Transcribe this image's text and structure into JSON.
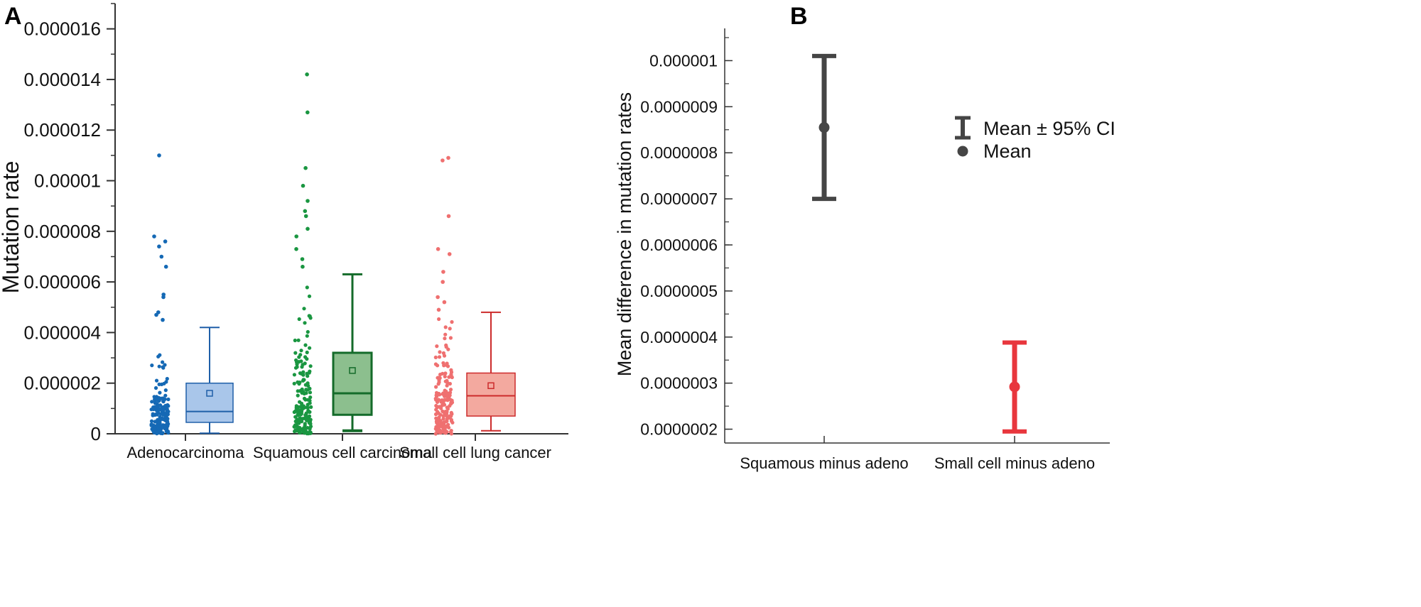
{
  "panels": {
    "a": {
      "letter": "A"
    },
    "b": {
      "letter": "B"
    }
  },
  "chart_data": [
    {
      "type": "box",
      "panel": "A",
      "title": "",
      "xlabel": "",
      "ylabel": "Mutation rate",
      "ylim": [
        0,
        1.7e-05
      ],
      "yticks": [
        0,
        2e-06,
        4e-06,
        6e-06,
        8e-06,
        1e-05,
        1.2e-05,
        1.4e-05,
        1.6e-05
      ],
      "ytick_labels": [
        "0",
        "0.000002",
        "0.000004",
        "0.000006",
        "0.000008",
        "0.00001",
        "0.000012",
        "0.000014",
        "0.000016"
      ],
      "grid": false,
      "categories": [
        "Adenocarcinoma",
        "Squamous cell carcinoma",
        "Small cell lung cancer"
      ],
      "series": [
        {
          "category": "Adenocarcinoma",
          "color": "#1f5fa8",
          "fill": "#a9c6ea",
          "whisker_low": 2e-08,
          "q1": 4.5e-07,
          "median": 8.8e-07,
          "q3": 2e-06,
          "whisker_high": 4.2e-06,
          "mean": 1.6e-06,
          "outliers": [
            1.1e-05,
            7.8e-06,
            7.6e-06,
            7.4e-06,
            7e-06,
            6.6e-06,
            5.5e-06,
            5.4e-06,
            4.8e-06,
            4.7e-06,
            4.5e-06
          ]
        },
        {
          "category": "Squamous cell carcinoma",
          "color": "#146b2a",
          "fill": "#8cbf8e",
          "whisker_low": 1.2e-07,
          "q1": 7.5e-07,
          "median": 1.6e-06,
          "q3": 3.2e-06,
          "whisker_high": 6.3e-06,
          "mean": 2.5e-06,
          "outliers": [
            1.42e-05,
            1.27e-05,
            1.05e-05,
            9.8e-06,
            9.2e-06,
            8.8e-06,
            8.6e-06,
            8.1e-06,
            7.8e-06,
            7.3e-06,
            6.9e-06,
            6.6e-06
          ]
        },
        {
          "category": "Small cell lung cancer",
          "color": "#cc2b2b",
          "fill": "#f3a99f",
          "whisker_low": 1.2e-07,
          "q1": 7e-07,
          "median": 1.5e-06,
          "q3": 2.4e-06,
          "whisker_high": 4.8e-06,
          "mean": 1.9e-06,
          "outliers": [
            1.09e-05,
            1.08e-05,
            8.6e-06,
            7.3e-06,
            7.1e-06,
            6.4e-06,
            6e-06,
            5.4e-06,
            5.2e-06,
            4.9e-06
          ]
        }
      ],
      "point_colors": [
        "#1569b5",
        "#1a9641",
        "#ef7070"
      ]
    },
    {
      "type": "errorbar",
      "panel": "B",
      "title": "",
      "xlabel": "",
      "ylabel": "Mean difference in mutation rates",
      "ylim": [
        1.7e-07,
        1.07e-06
      ],
      "yticks": [
        2e-07,
        3e-07,
        4e-07,
        5e-07,
        6e-07,
        7e-07,
        8e-07,
        9e-07,
        1e-06
      ],
      "ytick_labels": [
        "0.0000002",
        "0.0000003",
        "0.0000004",
        "0.0000005",
        "0.0000006",
        "0.0000007",
        "0.0000008",
        "0.0000009",
        "0.000001"
      ],
      "grid": false,
      "categories": [
        "Squamous minus adeno",
        "Small cell  minus adeno"
      ],
      "series": [
        {
          "category": "Squamous minus adeno",
          "mean": 8.55e-07,
          "ci_low": 7e-07,
          "ci_high": 1.01e-06,
          "color": "#454545"
        },
        {
          "category": "Small cell  minus adeno",
          "mean": 2.92e-07,
          "ci_low": 1.95e-07,
          "ci_high": 3.88e-07,
          "color": "#e8363d"
        }
      ],
      "legend": {
        "placement": "top-right",
        "entries": [
          "Mean ± 95% CI",
          "Mean"
        ]
      }
    }
  ]
}
